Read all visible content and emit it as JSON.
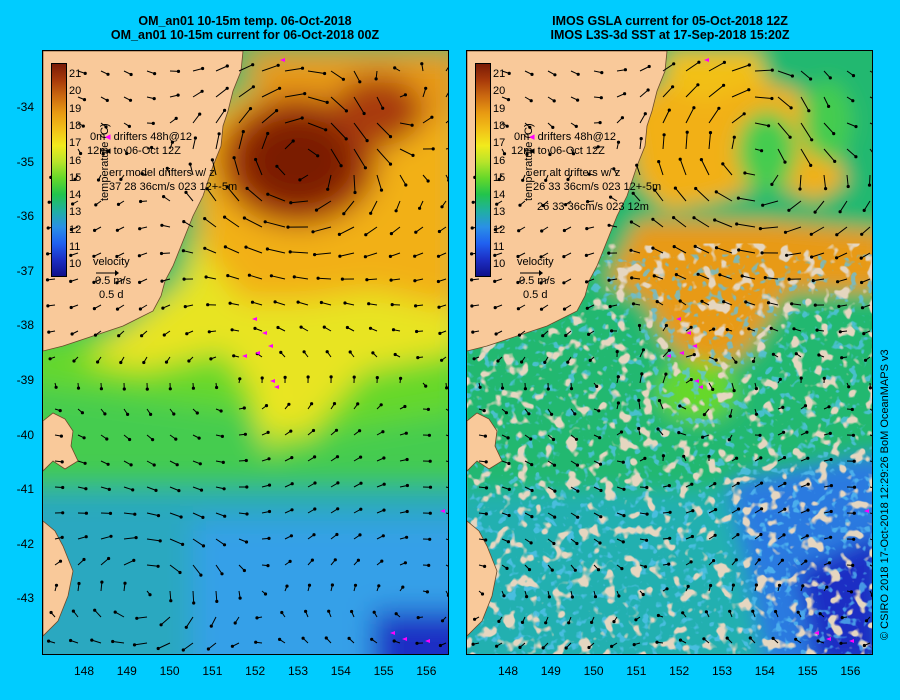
{
  "left_panel": {
    "title1": "OM_an01 10-15m temp. 06-Oct-2018",
    "title2": "OM_an01 10-15m current for 06-Oct-2018 00Z",
    "legend_lines": [
      "drifters 48h@12",
      "to 06-Oct 12Z"
    ],
    "depth_labels": [
      "0m",
      "12m"
    ],
    "err_line1": "err model drifters w/ z",
    "err_line2": "37 28 36cm/s 023 12+-5m",
    "err_line3": ""
  },
  "right_panel": {
    "title1": "IMOS GSLA current for 05-Oct-2018 12Z",
    "title2": "IMOS L3S-3d SST at 17-Sep-2018 15:20Z",
    "legend_lines": [
      "drifters 48h@12",
      "to 06-Oct 12Z"
    ],
    "depth_labels": [
      "0m",
      "12m"
    ],
    "err_line1": "err alt drifters w/ z",
    "err_line2": "26 33 36cm/s 023 12+-5m",
    "err_line3": "26 33 36cm/s 023 12m"
  },
  "velocity": {
    "label": "velocity",
    "speed": "0.5 m/s",
    "time": "0.5 d"
  },
  "colorbar": {
    "title": "temperature (C)",
    "ticks": [
      "21",
      "20",
      "19",
      "18",
      "17",
      "16",
      "15",
      "14",
      "13",
      "12",
      "11",
      "10"
    ],
    "colors": [
      "#7a1a06",
      "#a83a0a",
      "#cc6a10",
      "#e89a12",
      "#f2c018",
      "#f2ea1c",
      "#b8e42a",
      "#66d82a",
      "#22c44c",
      "#20b0a0",
      "#2a90e6",
      "#2060f0",
      "#1c2ec4",
      "#10108a"
    ]
  },
  "lat_labels": [
    "-34",
    "-35",
    "-36",
    "-37",
    "-38",
    "-39",
    "-40",
    "-41",
    "-42",
    "-43"
  ],
  "lon_labels": [
    "148",
    "149",
    "150",
    "151",
    "152",
    "153",
    "154",
    "155",
    "156"
  ],
  "credit": "© CSIRO 2018   17-Oct-2018 12:29:26 BoM OceanMAPS v3",
  "colors": {
    "background": "#00ccff",
    "land": "#f9c99a",
    "cloud": "#c8aa88",
    "drifter": "#ff00ff"
  }
}
